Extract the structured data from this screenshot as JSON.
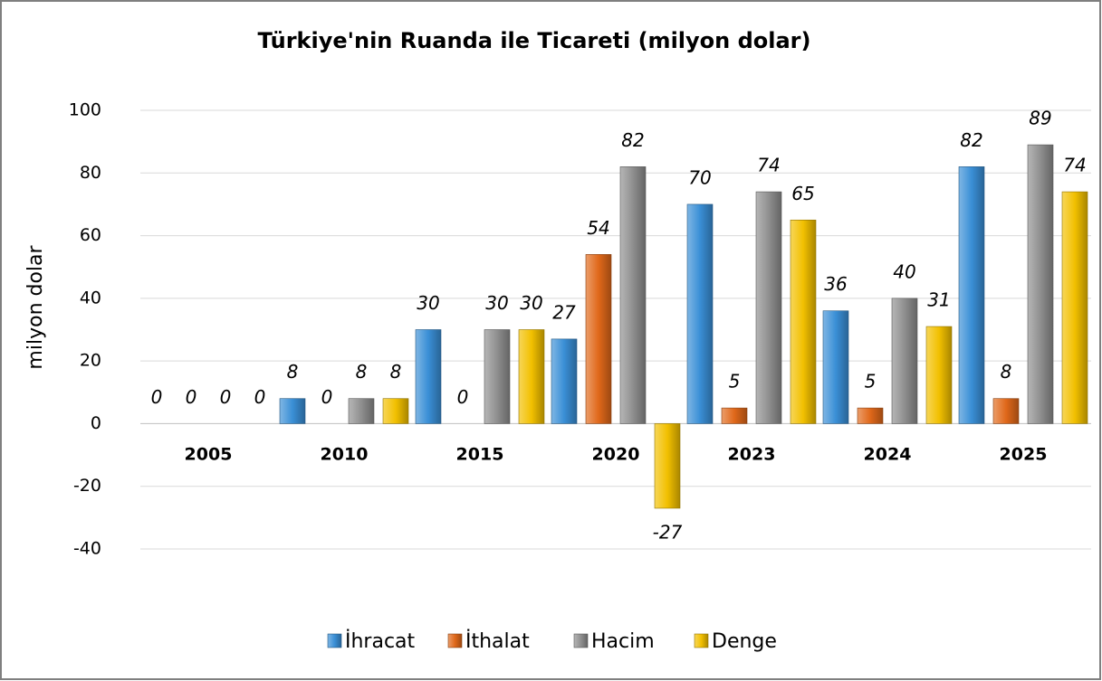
{
  "chart_data": {
    "type": "bar",
    "title": "Türkiye'nin Ruanda ile Ticareti (milyon dolar)",
    "y_label": "milyon dolar",
    "categories": [
      "2005",
      "2010",
      "2015",
      "2020",
      "2023",
      "2024",
      "2025"
    ],
    "series": [
      {
        "name": "İhracat",
        "color": "#3a8fd6",
        "values": [
          0,
          8,
          30,
          27,
          70,
          36,
          82
        ]
      },
      {
        "name": "İthalat",
        "color": "#e0681a",
        "values": [
          0,
          0,
          0,
          54,
          5,
          5,
          8
        ]
      },
      {
        "name": "Hacim",
        "color": "#8f8f8f",
        "values": [
          0,
          8,
          30,
          82,
          74,
          40,
          89
        ]
      },
      {
        "name": "Denge",
        "color": "#f2c000",
        "values": [
          0,
          8,
          30,
          -27,
          65,
          31,
          74
        ]
      }
    ],
    "ylim": [
      -40,
      100
    ],
    "yticks": [
      -40,
      -20,
      0,
      20,
      40,
      60,
      80,
      100
    ],
    "grid": true,
    "legend": "bottom"
  }
}
